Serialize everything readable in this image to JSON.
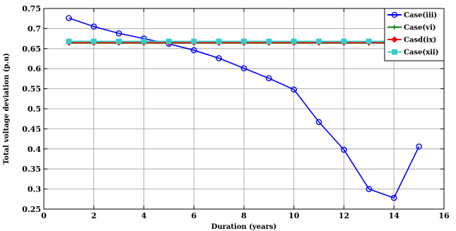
{
  "chart_data": {
    "type": "line",
    "xlabel": "Duration (years)",
    "ylabel": "Total voltage deviation (p.u)",
    "xlim": [
      0,
      16
    ],
    "ylim": [
      0.25,
      0.75
    ],
    "xticks": [
      0,
      2,
      4,
      6,
      8,
      10,
      12,
      14,
      16
    ],
    "yticks": [
      0.25,
      0.3,
      0.35,
      0.4,
      0.45,
      0.5,
      0.55,
      0.6,
      0.65,
      0.7,
      0.75
    ],
    "ytick_labels": [
      "0.25",
      "0.3",
      "0.35",
      "0.4",
      "0.45",
      "0.5",
      "0.55",
      "0.6",
      "0.65",
      "0.7",
      "0.75"
    ],
    "grid": true,
    "legend_position": "top-right",
    "x": [
      1,
      2,
      3,
      4,
      5,
      6,
      7,
      8,
      9,
      10,
      11,
      12,
      13,
      14,
      15
    ],
    "series": [
      {
        "name": "Case(iii)",
        "color": "#0000ff",
        "marker": "circle",
        "values": [
          0.726,
          0.705,
          0.688,
          0.675,
          0.662,
          0.646,
          0.626,
          0.601,
          0.576,
          0.548,
          0.467,
          0.398,
          0.3,
          0.278,
          0.406
        ]
      },
      {
        "name": "Case(vi)",
        "color": "#007f00",
        "marker": "plus",
        "values": [
          0.664,
          0.664,
          0.664,
          0.664,
          0.664,
          0.664,
          0.664,
          0.664,
          0.664,
          0.664,
          0.664,
          0.664,
          0.664,
          0.664,
          0.664
        ]
      },
      {
        "name": "Casd(ix)",
        "color": "#ff0000",
        "marker": "diamond",
        "values": [
          0.665,
          0.665,
          0.665,
          0.665,
          0.665,
          0.665,
          0.665,
          0.665,
          0.665,
          0.665,
          0.665,
          0.665,
          0.665,
          0.665,
          0.665
        ]
      },
      {
        "name": "Case(xii)",
        "color": "#33cccc",
        "marker": "square",
        "values": [
          0.668,
          0.668,
          0.668,
          0.668,
          0.668,
          0.668,
          0.668,
          0.668,
          0.668,
          0.668,
          0.668,
          0.668,
          0.668,
          0.668,
          0.668
        ]
      }
    ]
  }
}
